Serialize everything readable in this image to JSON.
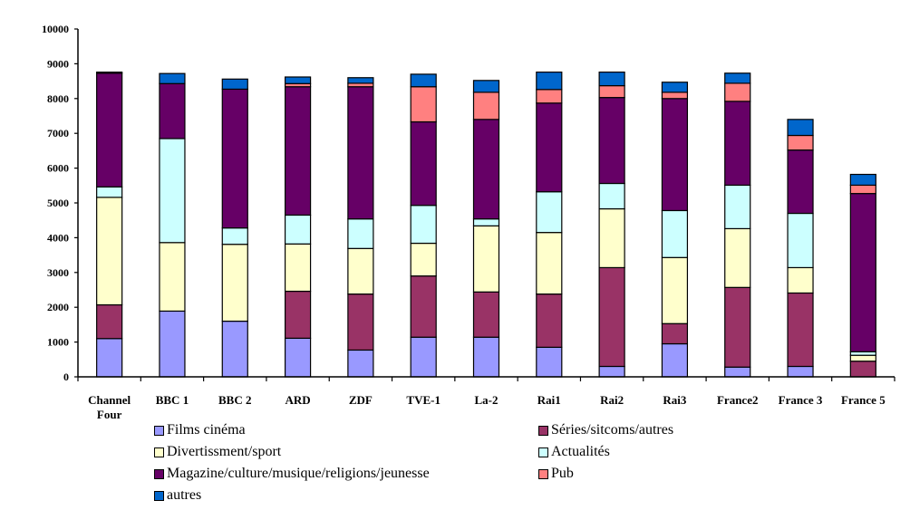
{
  "chart_data": {
    "type": "bar",
    "stacked": true,
    "title": "",
    "xlabel": "",
    "ylabel": "",
    "ylim": [
      0,
      10000
    ],
    "yticks": [
      0,
      1000,
      2000,
      3000,
      4000,
      5000,
      6000,
      7000,
      8000,
      9000,
      10000
    ],
    "ytick_labels": [
      "0",
      "1000",
      "2000",
      "3000",
      "4000",
      "5000",
      "6000",
      "7000",
      "8000",
      "9000",
      "10000"
    ],
    "grid": false,
    "legend_position": "bottom",
    "categories": [
      [
        "Channel",
        "Four"
      ],
      [
        "BBC 1"
      ],
      [
        "BBC 2"
      ],
      [
        "ARD"
      ],
      [
        "ZDF"
      ],
      [
        "TVE-1"
      ],
      [
        "La-2"
      ],
      [
        "Rai1"
      ],
      [
        "Rai2"
      ],
      [
        "Rai3"
      ],
      [
        "France2"
      ],
      [
        "France 3"
      ],
      [
        "France 5"
      ]
    ],
    "series": [
      {
        "name": "Films cinéma",
        "color": "#9999FF",
        "values": [
          1100,
          1890,
          1600,
          1110,
          770,
          1140,
          1140,
          850,
          300,
          950,
          280,
          300,
          0
        ]
      },
      {
        "name": "Séries/sitcoms/autres",
        "color": "#993366",
        "values": [
          970,
          0,
          0,
          1350,
          1610,
          1760,
          1300,
          1530,
          2840,
          580,
          2290,
          2110,
          450
        ]
      },
      {
        "name": "Divertissment/sport",
        "color": "#FFFFCC",
        "values": [
          3090,
          1970,
          2210,
          1360,
          1310,
          940,
          1900,
          1770,
          1690,
          1900,
          1690,
          730,
          170
        ]
      },
      {
        "name": "Actualités",
        "color": "#CCFFFF",
        "values": [
          300,
          2990,
          470,
          830,
          850,
          1090,
          200,
          1170,
          730,
          1350,
          1250,
          1560,
          100
        ]
      },
      {
        "name": "Magazine/culture/musique/religions/jeunesse",
        "color": "#660066",
        "values": [
          3270,
          1580,
          3990,
          3690,
          3800,
          2400,
          2860,
          2550,
          2470,
          3220,
          2410,
          1820,
          4550
        ]
      },
      {
        "name": "Pub",
        "color": "#FF8080",
        "values": [
          0,
          0,
          0,
          90,
          100,
          1010,
          780,
          390,
          340,
          180,
          520,
          420,
          240
        ]
      },
      {
        "name": "autres",
        "color": "#0066CC",
        "values": [
          30,
          290,
          290,
          190,
          160,
          360,
          340,
          500,
          390,
          290,
          290,
          460,
          310
        ]
      }
    ]
  }
}
